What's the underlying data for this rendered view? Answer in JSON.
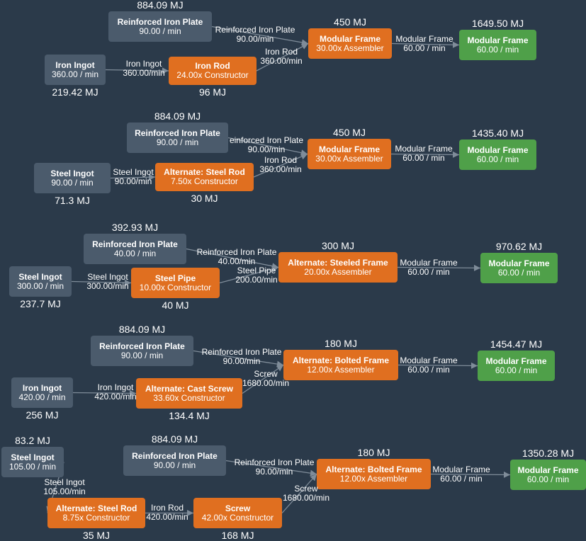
{
  "diagrams": [
    {
      "nodes": [
        {
          "t1": "Reinforced Iron Plate",
          "t2": "90.00 / min",
          "energy": "884.09 MJ"
        },
        {
          "t1": "Iron Ingot",
          "t2": "360.00 / min",
          "energy": "219.42 MJ"
        },
        {
          "t1": "Iron Rod",
          "t2": "24.00x Constructor",
          "energy": "96 MJ"
        },
        {
          "t1": "Modular Frame",
          "t2": "30.00x Assembler",
          "energy": "450 MJ"
        },
        {
          "t1": "Modular Frame",
          "t2": "60.00 / min",
          "energy": "1649.50 MJ"
        }
      ],
      "edges": [
        {
          "name": "Iron Ingot",
          "rate": "360.00/min"
        },
        {
          "name": "Reinforced Iron Plate",
          "rate": "90.00/min"
        },
        {
          "name": "Iron Rod",
          "rate": "360.00/min"
        },
        {
          "name": "Modular Frame",
          "rate": "60.00 / min"
        }
      ]
    },
    {
      "nodes": [
        {
          "t1": "Reinforced Iron Plate",
          "t2": "90.00 / min",
          "energy": "884.09 MJ"
        },
        {
          "t1": "Steel Ingot",
          "t2": "90.00 / min",
          "energy": "71.3 MJ"
        },
        {
          "t1": "Alternate: Steel Rod",
          "t2": "7.50x Constructor",
          "energy": "30 MJ"
        },
        {
          "t1": "Modular Frame",
          "t2": "30.00x Assembler",
          "energy": "450 MJ"
        },
        {
          "t1": "Modular Frame",
          "t2": "60.00 / min",
          "energy": "1435.40 MJ"
        }
      ],
      "edges": [
        {
          "name": "Steel Ingot",
          "rate": "90.00/min"
        },
        {
          "name": "einforced Iron Plate",
          "rate": "90.00/min"
        },
        {
          "name": "Iron Rod",
          "rate": "360.00/min"
        },
        {
          "name": "Modular Frame",
          "rate": "60.00 / min"
        }
      ]
    },
    {
      "nodes": [
        {
          "t1": "Reinforced Iron Plate",
          "t2": "40.00 / min",
          "energy": "392.93 MJ"
        },
        {
          "t1": "Steel Ingot",
          "t2": "300.00 / min",
          "energy": "237.7 MJ"
        },
        {
          "t1": "Steel Pipe",
          "t2": "10.00x Constructor",
          "energy": "40 MJ"
        },
        {
          "t1": "Alternate: Steeled Frame",
          "t2": "20.00x Assembler",
          "energy": "300 MJ"
        },
        {
          "t1": "Modular Frame",
          "t2": "60.00 / min",
          "energy": "970.62 MJ"
        }
      ],
      "edges": [
        {
          "name": "Steel Ingot",
          "rate": "300.00/min"
        },
        {
          "name": "Reinforced Iron Plate",
          "rate": "40.00/min"
        },
        {
          "name": "Steel Pipe",
          "rate": "200.00/min"
        },
        {
          "name": "Modular Frame",
          "rate": "60.00 / min"
        }
      ]
    },
    {
      "nodes": [
        {
          "t1": "Reinforced Iron Plate",
          "t2": "90.00 / min",
          "energy": "884.09 MJ"
        },
        {
          "t1": "Iron Ingot",
          "t2": "420.00 / min",
          "energy": "256 MJ"
        },
        {
          "t1": "Alternate: Cast Screw",
          "t2": "33.60x Constructor",
          "energy": "134.4 MJ"
        },
        {
          "t1": "Alternate: Bolted Frame",
          "t2": "12.00x Assembler",
          "energy": "180 MJ"
        },
        {
          "t1": "Modular Frame",
          "t2": "60.00 / min",
          "energy": "1454.47 MJ"
        }
      ],
      "edges": [
        {
          "name": "Iron Ingot",
          "rate": "420.00/min"
        },
        {
          "name": "Reinforced Iron Plate",
          "rate": "90.00/min"
        },
        {
          "name": "Screw",
          "rate": "1680.00/min"
        },
        {
          "name": "Modular Frame",
          "rate": "60.00 / min"
        }
      ]
    },
    {
      "nodes": [
        {
          "t1": "Steel Ingot",
          "t2": "105.00 / min",
          "energy": "83.2 MJ"
        },
        {
          "t1": "Alternate: Steel Rod",
          "t2": "8.75x Constructor",
          "energy": "35 MJ"
        },
        {
          "t1": "Screw",
          "t2": "42.00x Constructor",
          "energy": "168 MJ"
        },
        {
          "t1": "Reinforced Iron Plate",
          "t2": "90.00 / min",
          "energy": "884.09 MJ"
        },
        {
          "t1": "Alternate: Bolted Frame",
          "t2": "12.00x Assembler",
          "energy": "180 MJ"
        },
        {
          "t1": "Modular Frame",
          "t2": "60.00 / min",
          "energy": "1350.28 MJ"
        }
      ],
      "edges": [
        {
          "name": "Steel Ingot",
          "rate": "105.00/min"
        },
        {
          "name": "Iron Rod",
          "rate": "420.00/min"
        },
        {
          "name": "Reinforced Iron Plate",
          "rate": "90.00/min"
        },
        {
          "name": "Screw",
          "rate": "1680.00/min"
        },
        {
          "name": "Modular Frame",
          "rate": "60.00 / min"
        }
      ]
    }
  ],
  "colors": {
    "background": "#2b3a4a",
    "source": "#4b5b6c",
    "machine": "#e06f20",
    "output": "#4fa049",
    "edge": "#7f8c99"
  }
}
